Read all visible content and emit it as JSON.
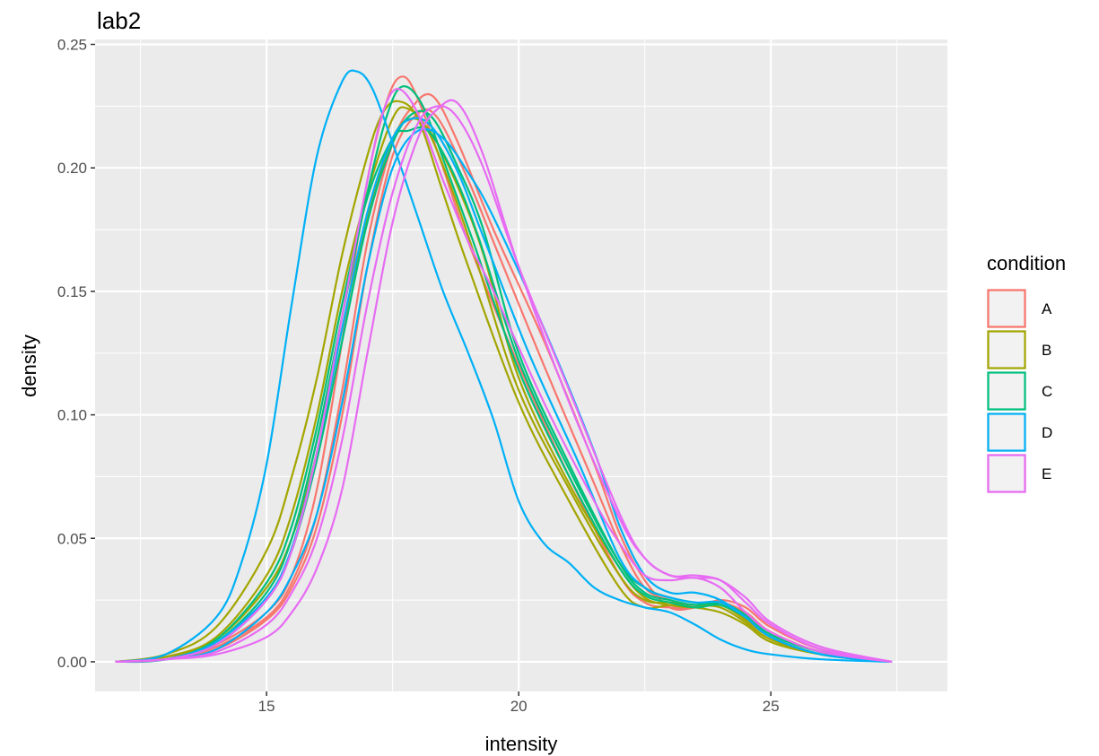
{
  "chart_data": {
    "type": "line",
    "title": "lab2",
    "xlabel": "intensity",
    "ylabel": "density",
    "xlim": [
      11.6,
      28.5
    ],
    "ylim": [
      -0.012,
      0.252
    ],
    "x_ticks": [
      15,
      20,
      25
    ],
    "x_tick_labels": [
      "15",
      "20",
      "25"
    ],
    "y_ticks": [
      0,
      0.05,
      0.1,
      0.15,
      0.2,
      0.25
    ],
    "y_tick_labels": [
      "0.00",
      "0.05",
      "0.10",
      "0.15",
      "0.20",
      "0.25"
    ],
    "grid": true,
    "legend": {
      "title": "condition",
      "position": "right",
      "entries": [
        {
          "label": "A",
          "color": "#F8766D"
        },
        {
          "label": "B",
          "color": "#A3A500"
        },
        {
          "label": "C",
          "color": "#00BF7D"
        },
        {
          "label": "D",
          "color": "#00B0F6"
        },
        {
          "label": "E",
          "color": "#E76BF3"
        }
      ]
    },
    "series": [
      {
        "condition": "A",
        "color": "#F8766D",
        "x": [
          12,
          13,
          14,
          15,
          15.5,
          16,
          16.5,
          17,
          17.4,
          17.7,
          18,
          18.5,
          19,
          20,
          21,
          22,
          22.5,
          23,
          23.5,
          24,
          24.5,
          25,
          26,
          27.4
        ],
        "y": [
          0,
          0.002,
          0.007,
          0.02,
          0.035,
          0.07,
          0.13,
          0.195,
          0.228,
          0.237,
          0.228,
          0.2,
          0.17,
          0.12,
          0.075,
          0.035,
          0.024,
          0.022,
          0.022,
          0.024,
          0.02,
          0.012,
          0.004,
          0
        ]
      },
      {
        "condition": "A",
        "color": "#F8766D",
        "x": [
          12,
          13,
          14,
          15,
          15.5,
          16,
          16.5,
          17,
          17.5,
          17.9,
          18.3,
          18.8,
          19.5,
          20.5,
          21.5,
          22,
          22.5,
          23,
          23.5,
          24,
          24.5,
          25,
          26,
          27.4
        ],
        "y": [
          0,
          0.001,
          0.006,
          0.018,
          0.032,
          0.06,
          0.11,
          0.17,
          0.21,
          0.225,
          0.229,
          0.21,
          0.175,
          0.13,
          0.08,
          0.052,
          0.033,
          0.022,
          0.022,
          0.025,
          0.022,
          0.014,
          0.005,
          0
        ]
      },
      {
        "condition": "A",
        "color": "#F8766D",
        "x": [
          12,
          13,
          14,
          15,
          15.5,
          16,
          16.5,
          17,
          17.5,
          18,
          18.4,
          19,
          19.5,
          20.5,
          21.5,
          22,
          22.5,
          23,
          23.5,
          24,
          24.5,
          25,
          26,
          27.4
        ],
        "y": [
          0,
          0.001,
          0.005,
          0.017,
          0.03,
          0.055,
          0.1,
          0.16,
          0.205,
          0.222,
          0.22,
          0.195,
          0.17,
          0.12,
          0.072,
          0.048,
          0.03,
          0.025,
          0.023,
          0.024,
          0.02,
          0.012,
          0.004,
          0
        ]
      },
      {
        "condition": "B",
        "color": "#A3A500",
        "x": [
          12,
          13,
          14,
          15,
          15.5,
          16,
          16.5,
          17,
          17.3,
          17.6,
          18,
          18.5,
          19,
          20,
          21,
          22,
          22.5,
          23,
          23.5,
          24,
          24.5,
          25,
          26,
          27.4
        ],
        "y": [
          0,
          0.003,
          0.014,
          0.045,
          0.075,
          0.115,
          0.165,
          0.205,
          0.222,
          0.227,
          0.22,
          0.19,
          0.16,
          0.105,
          0.065,
          0.03,
          0.022,
          0.023,
          0.022,
          0.02,
          0.015,
          0.008,
          0.003,
          0
        ]
      },
      {
        "condition": "B",
        "color": "#A3A500",
        "x": [
          12,
          13,
          14,
          15,
          15.5,
          16,
          16.5,
          17,
          17.5,
          17.8,
          18.2,
          18.7,
          19.2,
          20,
          21,
          22,
          22.5,
          23,
          23.5,
          24,
          24.5,
          25,
          26,
          27.4
        ],
        "y": [
          0,
          0.002,
          0.01,
          0.035,
          0.06,
          0.1,
          0.15,
          0.19,
          0.22,
          0.224,
          0.215,
          0.19,
          0.16,
          0.11,
          0.07,
          0.035,
          0.025,
          0.024,
          0.023,
          0.022,
          0.016,
          0.009,
          0.003,
          0
        ]
      },
      {
        "condition": "B",
        "color": "#A3A500",
        "x": [
          12,
          13,
          14,
          15,
          15.5,
          16,
          16.5,
          17,
          17.5,
          17.9,
          18.3,
          18.8,
          19.3,
          20,
          21,
          22,
          22.5,
          23,
          23.5,
          24,
          24.5,
          25,
          26,
          27.4
        ],
        "y": [
          0,
          0.002,
          0.009,
          0.03,
          0.05,
          0.085,
          0.135,
          0.18,
          0.212,
          0.22,
          0.213,
          0.192,
          0.165,
          0.115,
          0.072,
          0.038,
          0.026,
          0.023,
          0.022,
          0.023,
          0.017,
          0.01,
          0.003,
          0
        ]
      },
      {
        "condition": "C",
        "color": "#00BF7D",
        "x": [
          12,
          13,
          14,
          15,
          15.5,
          16,
          16.5,
          17,
          17.4,
          17.7,
          18.1,
          18.6,
          19.1,
          20,
          21,
          22,
          22.5,
          23,
          23.5,
          24,
          24.5,
          25,
          26,
          27.4
        ],
        "y": [
          0,
          0.001,
          0.008,
          0.028,
          0.05,
          0.09,
          0.14,
          0.19,
          0.222,
          0.233,
          0.225,
          0.198,
          0.17,
          0.118,
          0.075,
          0.038,
          0.027,
          0.024,
          0.022,
          0.023,
          0.018,
          0.01,
          0.003,
          0
        ]
      },
      {
        "condition": "C",
        "color": "#00BF7D",
        "x": [
          12,
          13,
          14,
          15,
          15.5,
          16,
          16.5,
          17,
          17.5,
          17.9,
          18.3,
          18.8,
          19.3,
          20,
          21,
          22,
          22.5,
          23,
          23.5,
          24,
          24.5,
          25,
          26,
          27.4
        ],
        "y": [
          0,
          0.001,
          0.007,
          0.025,
          0.045,
          0.082,
          0.13,
          0.178,
          0.21,
          0.222,
          0.22,
          0.2,
          0.175,
          0.125,
          0.08,
          0.04,
          0.028,
          0.025,
          0.023,
          0.024,
          0.019,
          0.011,
          0.004,
          0
        ]
      },
      {
        "condition": "C",
        "color": "#00BF7D",
        "x": [
          12,
          13,
          14,
          15,
          15.5,
          16,
          16.5,
          17,
          17.5,
          17.8,
          18.2,
          18.7,
          19.2,
          20,
          21,
          22,
          22.5,
          23,
          23.5,
          24,
          24.5,
          25,
          26,
          27.4
        ],
        "y": [
          0,
          0.001,
          0.009,
          0.032,
          0.055,
          0.095,
          0.145,
          0.188,
          0.212,
          0.215,
          0.215,
          0.198,
          0.172,
          0.122,
          0.078,
          0.04,
          0.03,
          0.026,
          0.024,
          0.023,
          0.018,
          0.01,
          0.003,
          0
        ]
      },
      {
        "condition": "D",
        "color": "#00B0F6",
        "x": [
          12,
          13,
          14,
          14.5,
          15,
          15.5,
          16,
          16.5,
          16.8,
          17.1,
          17.5,
          18,
          18.5,
          19,
          19.5,
          20,
          20.5,
          21,
          21.5,
          22,
          22.5,
          23,
          23.5,
          24,
          24.5,
          25,
          26,
          27.4
        ],
        "y": [
          0,
          0.003,
          0.018,
          0.04,
          0.08,
          0.145,
          0.205,
          0.235,
          0.239,
          0.232,
          0.21,
          0.18,
          0.15,
          0.125,
          0.098,
          0.065,
          0.048,
          0.04,
          0.03,
          0.025,
          0.022,
          0.02,
          0.015,
          0.009,
          0.005,
          0.003,
          0.001,
          0
        ]
      },
      {
        "condition": "D",
        "color": "#00B0F6",
        "x": [
          12,
          13,
          14,
          15,
          15.5,
          16,
          16.5,
          17,
          17.5,
          18,
          18.5,
          19,
          19.5,
          20.5,
          21.5,
          22,
          22.5,
          23,
          23.5,
          24,
          24.5,
          25,
          26,
          27.4
        ],
        "y": [
          0,
          0.001,
          0.005,
          0.02,
          0.035,
          0.06,
          0.105,
          0.16,
          0.2,
          0.215,
          0.212,
          0.198,
          0.18,
          0.135,
          0.085,
          0.055,
          0.035,
          0.028,
          0.028,
          0.025,
          0.018,
          0.01,
          0.003,
          0
        ]
      },
      {
        "condition": "D",
        "color": "#00B0F6",
        "x": [
          12,
          13,
          14,
          15,
          15.5,
          16,
          16.5,
          17,
          17.5,
          17.9,
          18.3,
          18.8,
          19.3,
          20.2,
          21.2,
          22,
          22.5,
          23,
          23.5,
          24,
          24.5,
          25,
          26,
          27.4
        ],
        "y": [
          0,
          0.001,
          0.008,
          0.026,
          0.046,
          0.085,
          0.135,
          0.182,
          0.212,
          0.22,
          0.216,
          0.198,
          0.172,
          0.125,
          0.08,
          0.042,
          0.03,
          0.026,
          0.024,
          0.024,
          0.018,
          0.01,
          0.003,
          0
        ]
      },
      {
        "condition": "E",
        "color": "#E76BF3",
        "x": [
          12,
          13,
          14,
          15,
          15.5,
          16,
          16.5,
          17,
          17.3,
          17.6,
          18,
          18.5,
          19,
          19.5,
          20.5,
          21.5,
          22,
          22.5,
          23,
          23.5,
          24,
          24.5,
          25,
          26,
          27.4
        ],
        "y": [
          0,
          0.001,
          0.007,
          0.025,
          0.045,
          0.085,
          0.14,
          0.195,
          0.222,
          0.232,
          0.222,
          0.195,
          0.17,
          0.15,
          0.105,
          0.065,
          0.048,
          0.035,
          0.033,
          0.034,
          0.03,
          0.02,
          0.012,
          0.004,
          0
        ]
      },
      {
        "condition": "E",
        "color": "#E76BF3",
        "x": [
          12,
          13,
          14,
          15,
          15.5,
          16,
          16.5,
          17,
          17.5,
          18,
          18.4,
          18.8,
          19.3,
          20,
          21,
          22,
          22.5,
          23,
          23.5,
          24,
          24.5,
          25,
          26,
          27.4
        ],
        "y": [
          0,
          0.001,
          0.004,
          0.015,
          0.028,
          0.05,
          0.09,
          0.145,
          0.19,
          0.218,
          0.225,
          0.22,
          0.2,
          0.16,
          0.11,
          0.06,
          0.042,
          0.035,
          0.034,
          0.033,
          0.024,
          0.015,
          0.005,
          0
        ]
      },
      {
        "condition": "E",
        "color": "#E76BF3",
        "x": [
          12,
          13,
          14,
          15,
          15.5,
          16,
          16.5,
          17,
          17.5,
          18,
          18.4,
          18.8,
          19.3,
          20,
          21,
          22,
          22.5,
          23,
          23.5,
          24,
          24.5,
          25,
          26,
          27.4
        ],
        "y": [
          0,
          0.001,
          0.003,
          0.01,
          0.02,
          0.038,
          0.07,
          0.125,
          0.178,
          0.212,
          0.224,
          0.226,
          0.205,
          0.16,
          0.105,
          0.058,
          0.042,
          0.035,
          0.035,
          0.033,
          0.026,
          0.016,
          0.006,
          0
        ]
      }
    ]
  }
}
